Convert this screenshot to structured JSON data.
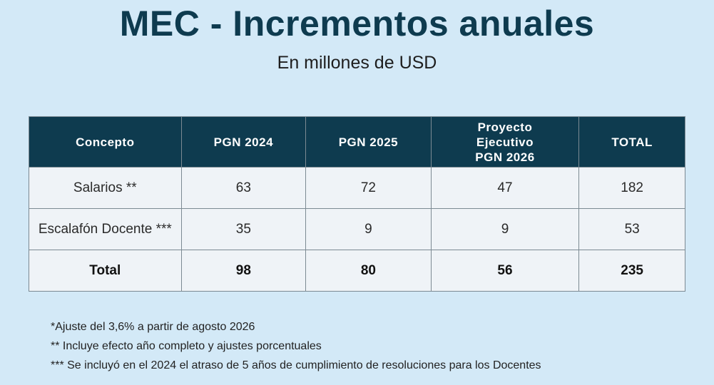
{
  "title": "MEC - Incrementos anuales",
  "subtitle": "En millones de USD",
  "chart_data": {
    "type": "table",
    "title": "MEC - Incrementos anuales",
    "subtitle": "En millones de USD",
    "columns": [
      "Concepto",
      "PGN 2024",
      "PGN 2025",
      "Proyecto Ejecutivo PGN 2026",
      "TOTAL"
    ],
    "rows": [
      [
        "Salarios **",
        "63",
        "72",
        "47",
        "182"
      ],
      [
        "Escalafón Docente ***",
        "35",
        "9",
        "9",
        "53"
      ],
      [
        "Total",
        "98",
        "80",
        "56",
        "235"
      ]
    ]
  },
  "header_lines": {
    "col3": [
      "Proyecto",
      "Ejecutivo",
      "PGN 2026"
    ]
  },
  "notes": [
    "*Ajuste del 3,6% a partir de agosto 2026",
    "** Incluye efecto año completo y ajustes porcentuales",
    "*** Se incluyó en el 2024 el atraso de 5 años de cumplimiento de resoluciones para los Docentes"
  ]
}
